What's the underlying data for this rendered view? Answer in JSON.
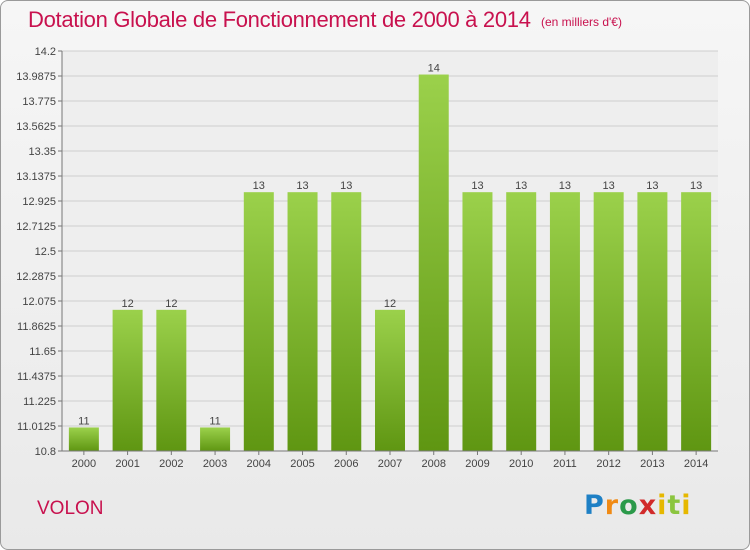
{
  "header": {
    "title": "Dotation Globale de Fonctionnement de 2000 à 2014",
    "unit": "(en milliers d'€)"
  },
  "footer": {
    "commune": "VOLON",
    "logo": "Proxiti"
  },
  "colors": {
    "title": "#c8114e",
    "bar_light": "#9bd14b",
    "bar_dark": "#5f9612"
  },
  "chart_data": {
    "type": "bar",
    "title": "Dotation Globale de Fonctionnement de 2000 à 2014",
    "subtitle": "(en milliers d'€)",
    "categories": [
      "2000",
      "2001",
      "2002",
      "2003",
      "2004",
      "2005",
      "2006",
      "2007",
      "2008",
      "2009",
      "2010",
      "2011",
      "2012",
      "2013",
      "2014"
    ],
    "values": [
      11,
      12,
      12,
      11,
      13,
      13,
      13,
      12,
      14,
      13,
      13,
      13,
      13,
      13,
      13
    ],
    "value_labels": [
      "11",
      "12",
      "12",
      "11",
      "13",
      "13",
      "13",
      "12",
      "14",
      "13",
      "13",
      "13",
      "13",
      "13",
      "13"
    ],
    "bar_values": [
      11.0,
      12.0,
      12.0,
      11.0,
      13.0,
      13.0,
      13.0,
      12.0,
      14.0,
      13.0,
      13.0,
      13.0,
      13.0,
      13.0,
      13.0
    ],
    "yticks": [
      10.8,
      11.0125,
      11.225,
      11.4375,
      11.65,
      11.8625,
      12.075,
      12.2875,
      12.5,
      12.7125,
      12.925,
      13.1375,
      13.35,
      13.5625,
      13.775,
      13.9875,
      14.2
    ],
    "ytick_labels": [
      "10.8",
      "11.0125",
      "11.225",
      "11.4375",
      "11.65",
      "11.8625",
      "12.075",
      "12.2875",
      "12.5",
      "12.7125",
      "12.925",
      "13.1375",
      "13.35",
      "13.5625",
      "13.775",
      "13.9875",
      "14.2"
    ],
    "ylim": [
      10.8,
      14.2
    ],
    "xlabel": "",
    "ylabel": "",
    "grid": true
  }
}
